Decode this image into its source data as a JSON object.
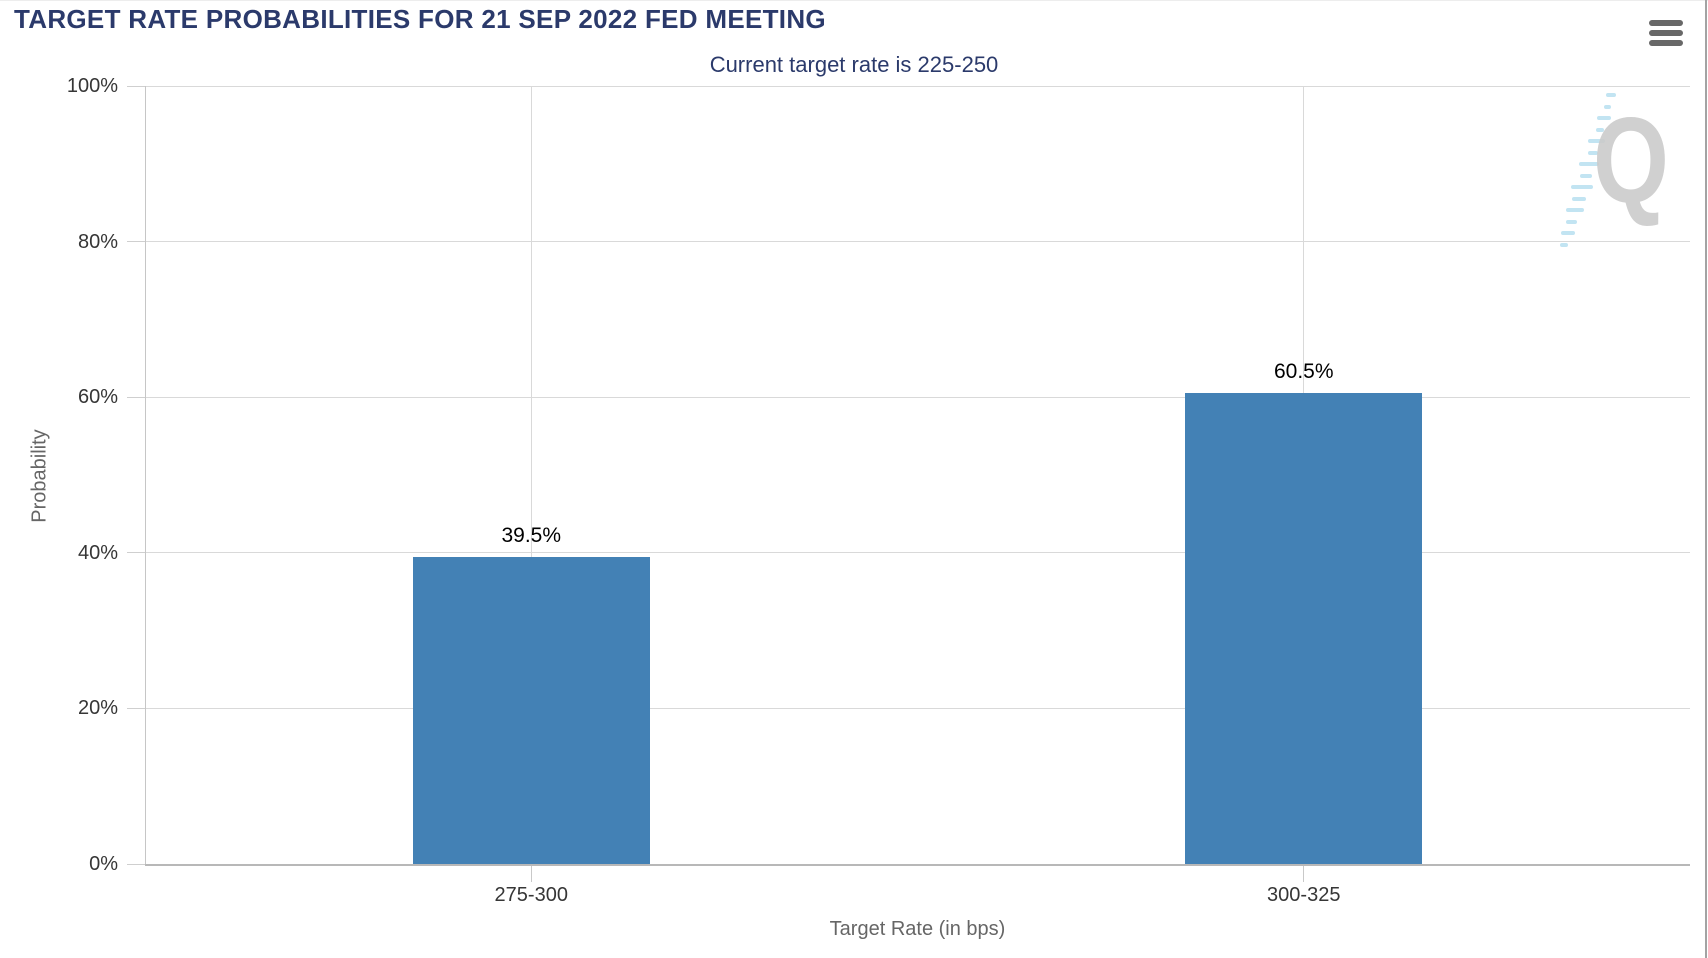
{
  "chart_data": {
    "type": "bar",
    "title": "TARGET RATE PROBABILITIES FOR 21 SEP 2022 FED MEETING",
    "subtitle": "Current target rate is 225-250",
    "categories": [
      "275-300",
      "300-325"
    ],
    "values": [
      39.5,
      60.5
    ],
    "data_labels": [
      "39.5%",
      "60.5%"
    ],
    "xlabel": "Target Rate (in bps)",
    "ylabel": "Probability",
    "ylim": [
      0,
      100
    ],
    "ytick_values": [
      0,
      20,
      40,
      60,
      80,
      100
    ],
    "ytick_labels": [
      "0%",
      "20%",
      "40%",
      "60%",
      "80%",
      "100%"
    ],
    "grid": true,
    "legend": false,
    "bar_color": "#4381b5"
  },
  "icons": {
    "export_menu": "hamburger-menu-icon",
    "watermark_letter": "Q"
  },
  "colors": {
    "title_navy": "#2b3a6b",
    "bar_blue": "#4381b5",
    "gridline": "#d9d9d9",
    "axis_line": "#b8b8b8",
    "tick_label": "#363636",
    "axis_title_gray": "#666666",
    "menu_icon_gray": "#686868",
    "watermark_gray": "#cbcbcb",
    "watermark_blue": "#aedbee",
    "right_border": "#a3a3a3"
  }
}
